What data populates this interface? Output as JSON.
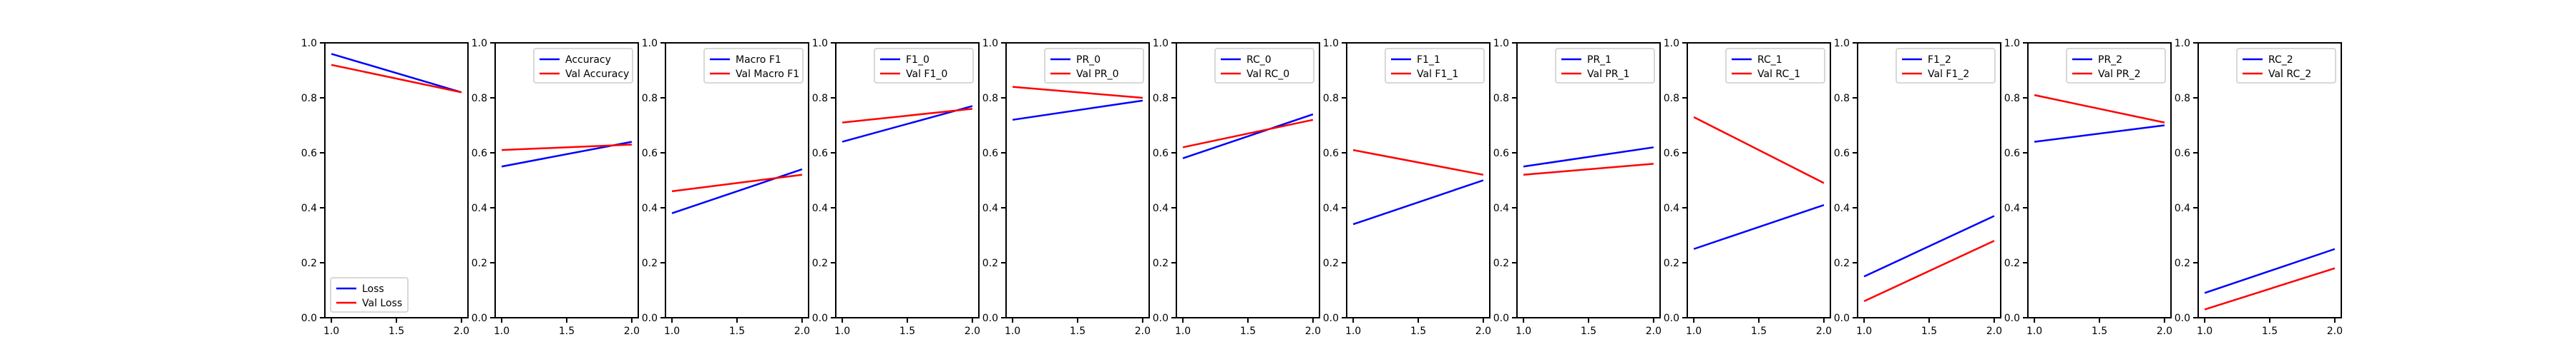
{
  "colors": {
    "train": "#0000ff",
    "val": "#ff0000"
  },
  "chart_data": [
    {
      "type": "line",
      "x": [
        1.0,
        2.0
      ],
      "xlim": [
        0.95,
        2.05
      ],
      "ylim": [
        0.0,
        1.0
      ],
      "xticks": [
        "1.0",
        "1.5",
        "2.0"
      ],
      "yticks": [
        "0.0",
        "0.2",
        "0.4",
        "0.6",
        "0.8",
        "1.0"
      ],
      "legend": "lower-left",
      "series": [
        {
          "name": "Loss",
          "values": [
            0.96,
            0.82
          ]
        },
        {
          "name": "Val Loss",
          "values": [
            0.92,
            0.82
          ]
        }
      ]
    },
    {
      "type": "line",
      "x": [
        1.0,
        2.0
      ],
      "xlim": [
        0.95,
        2.05
      ],
      "ylim": [
        0.0,
        1.0
      ],
      "xticks": [
        "1.0",
        "1.5",
        "2.0"
      ],
      "yticks": [
        "0.0",
        "0.2",
        "0.4",
        "0.6",
        "0.8",
        "1.0"
      ],
      "legend": "upper-right",
      "series": [
        {
          "name": "Accuracy",
          "values": [
            0.55,
            0.64
          ]
        },
        {
          "name": "Val Accuracy",
          "values": [
            0.61,
            0.63
          ]
        }
      ]
    },
    {
      "type": "line",
      "x": [
        1.0,
        2.0
      ],
      "xlim": [
        0.95,
        2.05
      ],
      "ylim": [
        0.0,
        1.0
      ],
      "xticks": [
        "1.0",
        "1.5",
        "2.0"
      ],
      "yticks": [
        "0.0",
        "0.2",
        "0.4",
        "0.6",
        "0.8",
        "1.0"
      ],
      "legend": "upper-right",
      "series": [
        {
          "name": "Macro F1",
          "values": [
            0.38,
            0.54
          ]
        },
        {
          "name": "Val Macro F1",
          "values": [
            0.46,
            0.52
          ]
        }
      ]
    },
    {
      "type": "line",
      "x": [
        1.0,
        2.0
      ],
      "xlim": [
        0.95,
        2.05
      ],
      "ylim": [
        0.0,
        1.0
      ],
      "xticks": [
        "1.0",
        "1.5",
        "2.0"
      ],
      "yticks": [
        "0.0",
        "0.2",
        "0.4",
        "0.6",
        "0.8",
        "1.0"
      ],
      "legend": "upper-right",
      "series": [
        {
          "name": "F1_0",
          "values": [
            0.64,
            0.77
          ]
        },
        {
          "name": "Val F1_0",
          "values": [
            0.71,
            0.76
          ]
        }
      ]
    },
    {
      "type": "line",
      "x": [
        1.0,
        2.0
      ],
      "xlim": [
        0.95,
        2.05
      ],
      "ylim": [
        0.0,
        1.0
      ],
      "xticks": [
        "1.0",
        "1.5",
        "2.0"
      ],
      "yticks": [
        "0.0",
        "0.2",
        "0.4",
        "0.6",
        "0.8",
        "1.0"
      ],
      "legend": "upper-right",
      "series": [
        {
          "name": "PR_0",
          "values": [
            0.72,
            0.79
          ]
        },
        {
          "name": "Val PR_0",
          "values": [
            0.84,
            0.8
          ]
        }
      ]
    },
    {
      "type": "line",
      "x": [
        1.0,
        2.0
      ],
      "xlim": [
        0.95,
        2.05
      ],
      "ylim": [
        0.0,
        1.0
      ],
      "xticks": [
        "1.0",
        "1.5",
        "2.0"
      ],
      "yticks": [
        "0.0",
        "0.2",
        "0.4",
        "0.6",
        "0.8",
        "1.0"
      ],
      "legend": "upper-right",
      "series": [
        {
          "name": "RC_0",
          "values": [
            0.58,
            0.74
          ]
        },
        {
          "name": "Val RC_0",
          "values": [
            0.62,
            0.72
          ]
        }
      ]
    },
    {
      "type": "line",
      "x": [
        1.0,
        2.0
      ],
      "xlim": [
        0.95,
        2.05
      ],
      "ylim": [
        0.0,
        1.0
      ],
      "xticks": [
        "1.0",
        "1.5",
        "2.0"
      ],
      "yticks": [
        "0.0",
        "0.2",
        "0.4",
        "0.6",
        "0.8",
        "1.0"
      ],
      "legend": "upper-right",
      "series": [
        {
          "name": "F1_1",
          "values": [
            0.34,
            0.5
          ]
        },
        {
          "name": "Val F1_1",
          "values": [
            0.61,
            0.52
          ]
        }
      ]
    },
    {
      "type": "line",
      "x": [
        1.0,
        2.0
      ],
      "xlim": [
        0.95,
        2.05
      ],
      "ylim": [
        0.0,
        1.0
      ],
      "xticks": [
        "1.0",
        "1.5",
        "2.0"
      ],
      "yticks": [
        "0.0",
        "0.2",
        "0.4",
        "0.6",
        "0.8",
        "1.0"
      ],
      "legend": "upper-right",
      "series": [
        {
          "name": "PR_1",
          "values": [
            0.55,
            0.62
          ]
        },
        {
          "name": "Val PR_1",
          "values": [
            0.52,
            0.56
          ]
        }
      ]
    },
    {
      "type": "line",
      "x": [
        1.0,
        2.0
      ],
      "xlim": [
        0.95,
        2.05
      ],
      "ylim": [
        0.0,
        1.0
      ],
      "xticks": [
        "1.0",
        "1.5",
        "2.0"
      ],
      "yticks": [
        "0.0",
        "0.2",
        "0.4",
        "0.6",
        "0.8",
        "1.0"
      ],
      "legend": "upper-right",
      "series": [
        {
          "name": "RC_1",
          "values": [
            0.25,
            0.41
          ]
        },
        {
          "name": "Val RC_1",
          "values": [
            0.73,
            0.49
          ]
        }
      ]
    },
    {
      "type": "line",
      "x": [
        1.0,
        2.0
      ],
      "xlim": [
        0.95,
        2.05
      ],
      "ylim": [
        0.0,
        1.0
      ],
      "xticks": [
        "1.0",
        "1.5",
        "2.0"
      ],
      "yticks": [
        "0.0",
        "0.2",
        "0.4",
        "0.6",
        "0.8",
        "1.0"
      ],
      "legend": "upper-right",
      "series": [
        {
          "name": "F1_2",
          "values": [
            0.15,
            0.37
          ]
        },
        {
          "name": "Val F1_2",
          "values": [
            0.06,
            0.28
          ]
        }
      ]
    },
    {
      "type": "line",
      "x": [
        1.0,
        2.0
      ],
      "xlim": [
        0.95,
        2.05
      ],
      "ylim": [
        0.0,
        1.0
      ],
      "xticks": [
        "1.0",
        "1.5",
        "2.0"
      ],
      "yticks": [
        "0.0",
        "0.2",
        "0.4",
        "0.6",
        "0.8",
        "1.0"
      ],
      "legend": "upper-right",
      "series": [
        {
          "name": "PR_2",
          "values": [
            0.64,
            0.7
          ]
        },
        {
          "name": "Val PR_2",
          "values": [
            0.81,
            0.71
          ]
        }
      ]
    },
    {
      "type": "line",
      "x": [
        1.0,
        2.0
      ],
      "xlim": [
        0.95,
        2.05
      ],
      "ylim": [
        0.0,
        1.0
      ],
      "xticks": [
        "1.0",
        "1.5",
        "2.0"
      ],
      "yticks": [
        "0.0",
        "0.2",
        "0.4",
        "0.6",
        "0.8",
        "1.0"
      ],
      "legend": "upper-right",
      "series": [
        {
          "name": "RC_2",
          "values": [
            0.09,
            0.25
          ]
        },
        {
          "name": "Val RC_2",
          "values": [
            0.03,
            0.18
          ]
        }
      ]
    }
  ]
}
